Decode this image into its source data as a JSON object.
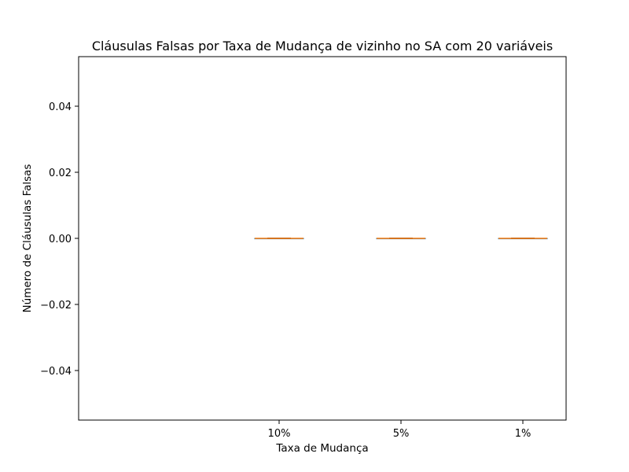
{
  "chart_data": {
    "type": "box",
    "title": "Cláusulas Falsas por Taxa de Mudança de vizinho no SA com 20 variáveis",
    "xlabel": "Taxa de Mudança",
    "ylabel": "Número de Cláusulas Falsas",
    "categories": [
      "10%",
      "5%",
      "1%"
    ],
    "series": [
      {
        "category": "10%",
        "min": 0,
        "q1": 0,
        "median": 0,
        "q3": 0,
        "max": 0
      },
      {
        "category": "5%",
        "min": 0,
        "q1": 0,
        "median": 0,
        "q3": 0,
        "max": 0
      },
      {
        "category": "1%",
        "min": 0,
        "q1": 0,
        "median": 0,
        "q3": 0,
        "max": 0
      }
    ],
    "ylim": [
      -0.055,
      0.055
    ],
    "yticks": [
      0.04,
      0.02,
      0.0,
      -0.02,
      -0.04
    ],
    "ytick_labels": [
      "0.04",
      "0.02",
      "0.00",
      "−0.02",
      "−0.04"
    ],
    "grid": false,
    "colors": {
      "box": "#1f77b4",
      "median": "#ff7f0e",
      "axes": "#000000"
    }
  }
}
